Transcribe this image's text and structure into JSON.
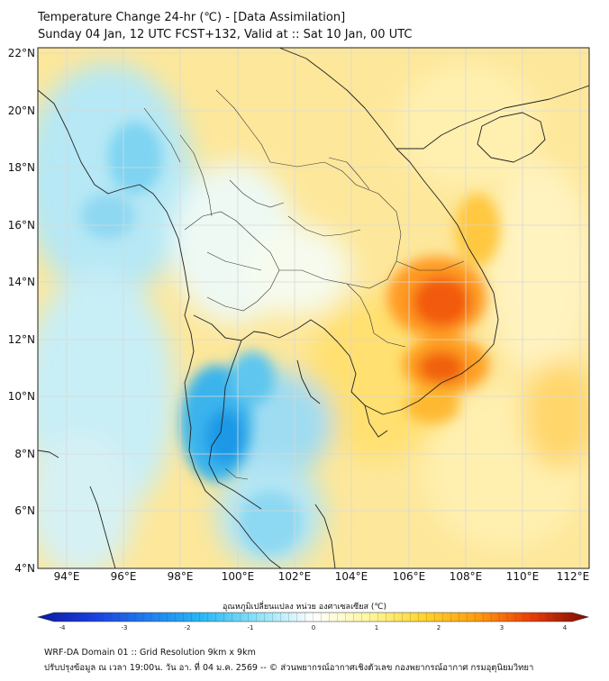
{
  "header": {
    "title": "Temperature Change 24-hr (℃) - [Data Assimilation]",
    "subtitle": "Sunday 04 Jan, 12 UTC FCST+132, Valid at :: Sat 10 Jan, 00 UTC"
  },
  "map": {
    "lat_ticks": [
      "22°N",
      "20°N",
      "18°N",
      "16°N",
      "14°N",
      "12°N",
      "10°N",
      "8°N",
      "6°N",
      "4°N"
    ],
    "lon_ticks": [
      "94°E",
      "96°E",
      "98°E",
      "100°E",
      "102°E",
      "104°E",
      "106°E",
      "108°E",
      "110°E",
      "112°E"
    ],
    "lat_range": [
      4,
      22.3
    ],
    "lon_range": [
      93,
      112.3
    ]
  },
  "colorbar": {
    "label": "อุณหภูมิเปลี่ยนแปลง หน่วย องศาเซลเซียส (℃)",
    "ticks": [
      "-4",
      "-3",
      "-2",
      "-1",
      "0",
      "1",
      "2",
      "3",
      "4"
    ],
    "range": [
      -4,
      4
    ]
  },
  "colors": {
    "cold": "#0a1aa0",
    "neutral": "#ffffff",
    "warm": "#7a0a00"
  },
  "footer": {
    "line1": "WRF-DA Domain 01 :: Grid Resolution 9km x 9km",
    "line2": "ปรับปรุงข้อมูล ณ เวลา 19:00น. วัน อา. ที่ 04 ม.ค. 2569 -- © ส่วนพยากรณ์อากาศเชิงตัวเลข กองพยากรณ์อากาศ กรมอุตุนิยมวิทยา"
  }
}
